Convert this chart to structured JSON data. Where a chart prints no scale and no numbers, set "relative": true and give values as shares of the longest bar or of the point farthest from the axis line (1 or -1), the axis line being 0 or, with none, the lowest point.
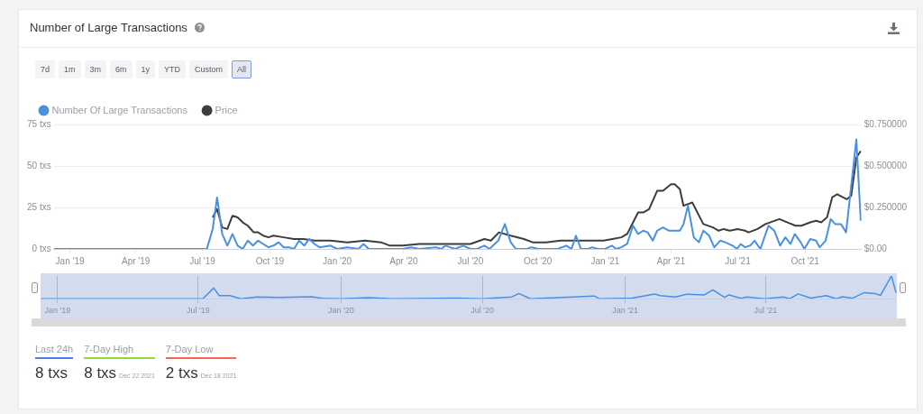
{
  "chart_data": [
    {
      "type": "line",
      "title": "Number of Large Transactions",
      "annotations": [
        "7d",
        "1m",
        "3m",
        "6m",
        "1y",
        "YTD",
        "Custom",
        "All"
      ],
      "legend": "top left",
      "grid": "y",
      "marker": "none",
      "line_style": "solid",
      "xlim": [
        "2018-12-10",
        "2021-12-17"
      ],
      "xticks": [
        {
          "value": "2019-01-01",
          "label": "Jan '19"
        },
        {
          "value": "2019-04-01",
          "label": "Apr '19"
        },
        {
          "value": "2019-07-01",
          "label": "Jul '19"
        },
        {
          "value": "2019-10-01",
          "label": "Oct '19"
        },
        {
          "value": "2020-01-01",
          "label": "Jan '20"
        },
        {
          "value": "2020-04-01",
          "label": "Apr '20"
        },
        {
          "value": "2020-07-01",
          "label": "Jul '20"
        },
        {
          "value": "2020-10-01",
          "label": "Oct '20"
        },
        {
          "value": "2021-01-01",
          "label": "Jan '21"
        },
        {
          "value": "2021-04-01",
          "label": "Apr '21"
        },
        {
          "value": "2021-07-01",
          "label": "Jul '21"
        },
        {
          "value": "2021-10-01",
          "label": "Oct '21"
        }
      ],
      "ylim": [
        0,
        75
      ],
      "yticks": [
        {
          "value": 0,
          "label": "0 txs"
        },
        {
          "value": 25,
          "label": "25 txs"
        },
        {
          "value": 50,
          "label": "50 txs"
        },
        {
          "value": 75,
          "label": "75 txs"
        }
      ],
      "y2lim": [
        0,
        0.75
      ],
      "y2ticks": [
        {
          "value": 0,
          "label": "$0.00"
        },
        {
          "value": 0.25,
          "label": "$0.250000"
        },
        {
          "value": 0.5,
          "label": "$0.500000"
        },
        {
          "value": 0.75,
          "label": "$0.750000"
        }
      ],
      "series": [
        {
          "name": "Number Of Large Transactions",
          "color": "#4a90e2",
          "axis": "y",
          "x": [
            "2018-12-10",
            "2019-07-07",
            "2019-07-15",
            "2019-07-21",
            "2019-07-28",
            "2019-08-04",
            "2019-08-11",
            "2019-08-18",
            "2019-08-25",
            "2019-09-01",
            "2019-09-08",
            "2019-09-15",
            "2019-09-22",
            "2019-09-29",
            "2019-10-06",
            "2019-10-13",
            "2019-10-20",
            "2019-10-27",
            "2019-11-03",
            "2019-11-10",
            "2019-11-17",
            "2019-11-24",
            "2019-12-01",
            "2019-12-08",
            "2019-12-23",
            "2020-01-01",
            "2020-01-15",
            "2020-01-30",
            "2020-02-06",
            "2020-02-13",
            "2020-03-08",
            "2020-03-30",
            "2020-04-11",
            "2020-04-22",
            "2020-05-15",
            "2020-05-22",
            "2020-05-28",
            "2020-06-03",
            "2020-06-10",
            "2020-06-21",
            "2020-07-01",
            "2020-07-10",
            "2020-07-20",
            "2020-07-27",
            "2020-08-08",
            "2020-08-17",
            "2020-08-25",
            "2020-09-01",
            "2020-09-16",
            "2020-09-22",
            "2020-10-02",
            "2020-10-28",
            "2020-11-09",
            "2020-11-16",
            "2020-11-22",
            "2020-11-29",
            "2020-12-09",
            "2020-12-14",
            "2020-12-22",
            "2021-01-01",
            "2021-01-10",
            "2021-01-16",
            "2021-01-23",
            "2021-01-31",
            "2021-02-08",
            "2021-02-15",
            "2021-02-22",
            "2021-02-28",
            "2021-03-07",
            "2021-03-13",
            "2021-03-21",
            "2021-03-29",
            "2021-04-13",
            "2021-04-18",
            "2021-04-24",
            "2021-05-02",
            "2021-05-09",
            "2021-05-15",
            "2021-05-23",
            "2021-05-30",
            "2021-06-07",
            "2021-06-14",
            "2021-06-24",
            "2021-06-30",
            "2021-07-05",
            "2021-07-11",
            "2021-07-18",
            "2021-07-24",
            "2021-08-01",
            "2021-08-12",
            "2021-08-20",
            "2021-08-28",
            "2021-09-04",
            "2021-09-11",
            "2021-09-17",
            "2021-09-25",
            "2021-09-30",
            "2021-10-08",
            "2021-10-16",
            "2021-10-21",
            "2021-10-29",
            "2021-11-05",
            "2021-11-11",
            "2021-11-19",
            "2021-11-26",
            "2021-12-10",
            "2021-12-16"
          ],
          "values": [
            0,
            0,
            12,
            31,
            9,
            2,
            9,
            2,
            0,
            5,
            2,
            5,
            3,
            1,
            2,
            4,
            1,
            1,
            0,
            5,
            2,
            6,
            3,
            1,
            2,
            0,
            1,
            0,
            3,
            0,
            0,
            0,
            1,
            0,
            1,
            0,
            2,
            1,
            0,
            2,
            0,
            0,
            2,
            0,
            5,
            15,
            4,
            0,
            0,
            1,
            0,
            0,
            2,
            0,
            8,
            0,
            0,
            1,
            0,
            0,
            2,
            0,
            1,
            3,
            14,
            9,
            11,
            10,
            5,
            11,
            13,
            11,
            11,
            15,
            26,
            7,
            4,
            11,
            8,
            1,
            5,
            4,
            2,
            0,
            3,
            1,
            2,
            5,
            0,
            14,
            11,
            2,
            7,
            3,
            9,
            4,
            0,
            6,
            5,
            1,
            5,
            18,
            15,
            15,
            10,
            66,
            17
          ]
        },
        {
          "name": "Price",
          "color": "#3d3d3d",
          "axis": "y2",
          "x": [
            "2019-07-15",
            "2019-07-21",
            "2019-07-28",
            "2019-08-04",
            "2019-08-11",
            "2019-08-18",
            "2019-08-25",
            "2019-09-01",
            "2019-09-09",
            "2019-09-15",
            "2019-09-22",
            "2019-09-29",
            "2019-10-06",
            "2019-10-20",
            "2019-11-03",
            "2019-11-16",
            "2019-12-01",
            "2019-12-23",
            "2020-01-15",
            "2020-02-08",
            "2020-03-01",
            "2020-03-13",
            "2020-03-30",
            "2020-04-22",
            "2020-05-15",
            "2020-07-01",
            "2020-07-20",
            "2020-07-29",
            "2020-08-09",
            "2020-08-25",
            "2020-09-12",
            "2020-09-24",
            "2020-10-12",
            "2020-11-01",
            "2020-11-23",
            "2020-12-13",
            "2020-12-30",
            "2021-01-11",
            "2021-01-23",
            "2021-01-31",
            "2021-02-15",
            "2021-02-22",
            "2021-03-02",
            "2021-03-13",
            "2021-03-21",
            "2021-04-01",
            "2021-04-06",
            "2021-04-13",
            "2021-04-18",
            "2021-04-30",
            "2021-05-15",
            "2021-05-28",
            "2021-06-05",
            "2021-06-12",
            "2021-06-20",
            "2021-07-01",
            "2021-07-11",
            "2021-07-16",
            "2021-07-28",
            "2021-08-08",
            "2021-08-27",
            "2021-09-07",
            "2021-09-18",
            "2021-09-26",
            "2021-10-08",
            "2021-10-16",
            "2021-10-23",
            "2021-10-31",
            "2021-11-07",
            "2021-11-14",
            "2021-11-22",
            "2021-11-27",
            "2021-12-03",
            "2021-12-10",
            "2021-12-16"
          ],
          "values": [
            0.19,
            0.24,
            0.13,
            0.12,
            0.2,
            0.19,
            0.16,
            0.14,
            0.1,
            0.1,
            0.08,
            0.07,
            0.08,
            0.07,
            0.06,
            0.06,
            0.05,
            0.05,
            0.04,
            0.05,
            0.04,
            0.02,
            0.02,
            0.03,
            0.03,
            0.03,
            0.06,
            0.05,
            0.1,
            0.08,
            0.06,
            0.04,
            0.04,
            0.05,
            0.05,
            0.05,
            0.05,
            0.06,
            0.07,
            0.09,
            0.22,
            0.22,
            0.24,
            0.35,
            0.35,
            0.39,
            0.39,
            0.36,
            0.26,
            0.28,
            0.15,
            0.13,
            0.11,
            0.12,
            0.11,
            0.12,
            0.11,
            0.1,
            0.12,
            0.15,
            0.18,
            0.16,
            0.14,
            0.14,
            0.16,
            0.17,
            0.16,
            0.19,
            0.31,
            0.33,
            0.31,
            0.3,
            0.32,
            0.55,
            0.59
          ]
        }
      ]
    },
    {
      "type": "line",
      "relative": true,
      "grid": "x",
      "marker": "none",
      "xlim": [
        "2018-12-10",
        "2021-12-17"
      ],
      "xticks": [
        {
          "value": "2019-01-01",
          "label": "Jan '19"
        },
        {
          "value": "2019-07-01",
          "label": "Jul '19"
        },
        {
          "value": "2020-01-01",
          "label": "Jan '20"
        },
        {
          "value": "2020-07-01",
          "label": "Jul '20"
        },
        {
          "value": "2021-01-01",
          "label": "Jan '21"
        },
        {
          "value": "2021-07-01",
          "label": "Jul '21"
        }
      ],
      "series": [
        {
          "color": "#4a90e2",
          "x": [
            "2018-12-10",
            "2019-07-07",
            "2019-07-21",
            "2019-07-28",
            "2019-08-11",
            "2019-08-25",
            "2019-09-15",
            "2019-10-13",
            "2019-11-10",
            "2019-11-24",
            "2019-12-08",
            "2020-01-01",
            "2020-02-06",
            "2020-03-08",
            "2020-05-28",
            "2020-07-01",
            "2020-08-08",
            "2020-08-17",
            "2020-09-01",
            "2020-11-22",
            "2020-11-29",
            "2021-01-10",
            "2021-02-08",
            "2021-02-15",
            "2021-03-07",
            "2021-03-21",
            "2021-04-13",
            "2021-04-24",
            "2021-05-09",
            "2021-05-15",
            "2021-05-30",
            "2021-06-07",
            "2021-06-30",
            "2021-07-24",
            "2021-08-01",
            "2021-08-12",
            "2021-08-28",
            "2021-09-17",
            "2021-09-30",
            "2021-10-08",
            "2021-10-21",
            "2021-11-05",
            "2021-11-19",
            "2021-11-26",
            "2021-12-10",
            "2021-12-16"
          ],
          "values": [
            0,
            0,
            0.47,
            0.14,
            0.14,
            0,
            0.08,
            0.06,
            0.08,
            0.09,
            0.02,
            0,
            0.05,
            0,
            0.03,
            0,
            0.08,
            0.23,
            0,
            0.12,
            0,
            0.03,
            0.21,
            0.14,
            0.08,
            0.2,
            0.17,
            0.39,
            0.06,
            0.17,
            0.02,
            0.08,
            0,
            0.08,
            0,
            0.21,
            0.03,
            0.14,
            0,
            0.09,
            0.02,
            0.27,
            0.23,
            0.15,
            1,
            0.26
          ]
        }
      ]
    },
    {
      "type": "other",
      "annotations": [
        "Last 24h",
        "8 txs",
        "7-Day High",
        "8 txs",
        "Dec 22 2021",
        "7-Day Low",
        "2 txs",
        "Dec 18 2021"
      ]
    }
  ]
}
